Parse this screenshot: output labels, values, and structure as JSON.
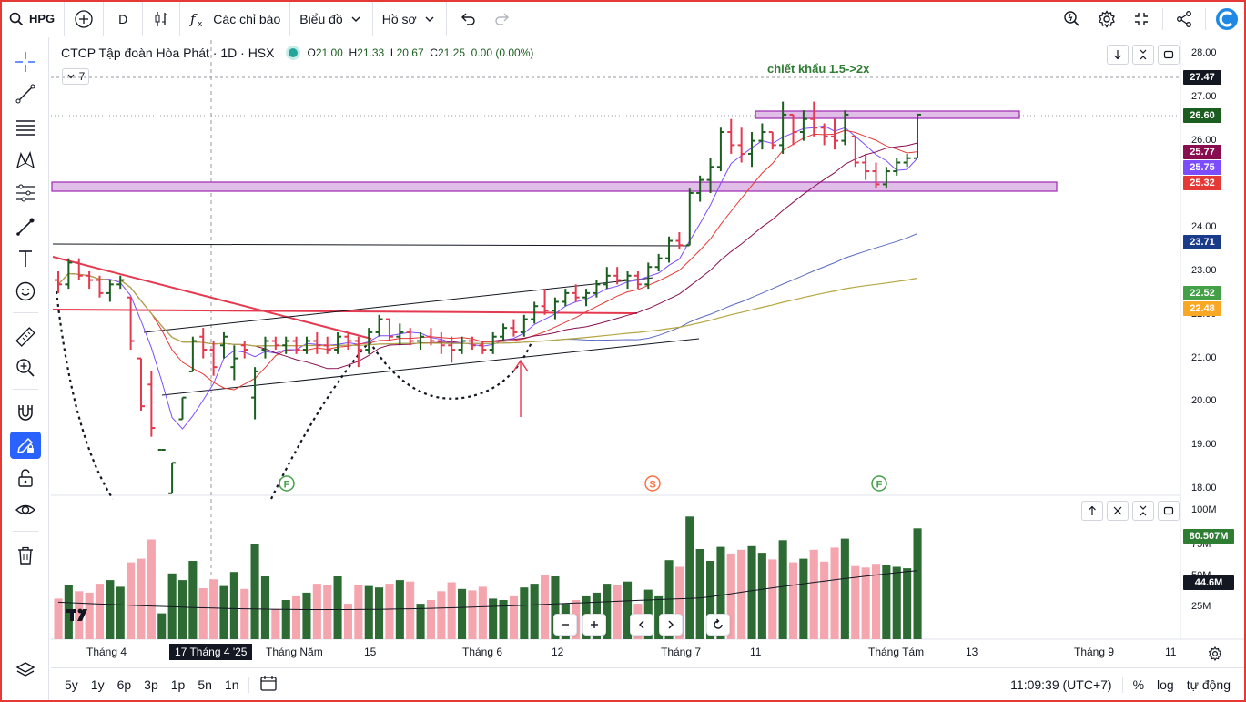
{
  "toolbar": {
    "symbol": "HPG",
    "interval": "D",
    "indicators_label": "Các chỉ báo",
    "chart_type_label": "Biểu đồ",
    "profile_label": "Hồ sơ"
  },
  "legend": {
    "title": "CTCP Tập đoàn Hòa Phát · 1D · HSX",
    "open_label": "O",
    "open": "21.00",
    "high_label": "H",
    "high": "21.33",
    "low_label": "L",
    "low": "20.67",
    "close_label": "C",
    "close": "21.25",
    "change": "0.00 (0.00%)",
    "collapsed_count": "7"
  },
  "annotation": "chiết khẩu 1.5->2x",
  "price_axis": [
    "28.00",
    "27.00",
    "26.00",
    "24.00",
    "23.00",
    "22.00",
    "21.00",
    "20.00",
    "19.00",
    "18.00"
  ],
  "price_tags": [
    {
      "value": "27.47",
      "color": "#131722"
    },
    {
      "value": "26.60",
      "color": "#1b5e20"
    },
    {
      "value": "25.77",
      "color": "#880e4f"
    },
    {
      "value": "25.75",
      "color": "#7c4dff"
    },
    {
      "value": "25.32",
      "color": "#e53935"
    },
    {
      "value": "23.71",
      "color": "#1a3a8a"
    },
    {
      "value": "22.52",
      "color": "#43a047"
    },
    {
      "value": "22.48",
      "color": "#f9a825"
    }
  ],
  "volume_axis": [
    "100M",
    "75M",
    "50M",
    "25M"
  ],
  "volume_tags": [
    {
      "value": "80.507M",
      "color": "#2e7d32"
    },
    {
      "value": "44.6M",
      "color": "#131722"
    }
  ],
  "events": [
    "F",
    "S",
    "F"
  ],
  "time_axis": [
    "Tháng 4",
    "17 Tháng 4 '25",
    "Tháng Năm",
    "15",
    "Tháng 6",
    "12",
    "Tháng 7",
    "11",
    "Tháng Tám",
    "13",
    "Tháng 9",
    "11"
  ],
  "ranges": [
    "5y",
    "1y",
    "6p",
    "3p",
    "1p",
    "5n",
    "1n"
  ],
  "bottom": {
    "clock": "11:09:39 (UTC+7)",
    "percent": "%",
    "log": "log",
    "auto": "tự động"
  },
  "colors": {
    "up": "#1b5e20",
    "down": "#e53950",
    "vol_up": "#2e6b34",
    "vol_down": "#f4a5ad",
    "zone": "#e1bee7",
    "zone_border": "#9c27b0"
  },
  "chart_data": {
    "type": "candlestick",
    "price_range": [
      18.0,
      28.0
    ],
    "ohlc": [
      [
        22.8,
        23.0,
        22.5,
        22.7
      ],
      [
        22.7,
        23.3,
        22.6,
        23.2
      ],
      [
        23.2,
        23.3,
        22.8,
        22.9
      ],
      [
        22.9,
        23.0,
        22.6,
        22.8
      ],
      [
        22.8,
        22.9,
        22.4,
        22.5
      ],
      [
        22.5,
        22.8,
        22.3,
        22.7
      ],
      [
        22.7,
        22.9,
        22.6,
        22.8
      ],
      [
        22.4,
        22.4,
        21.2,
        21.4
      ],
      [
        21.0,
        21.0,
        19.8,
        19.9
      ],
      [
        20.4,
        20.7,
        19.2,
        19.4
      ],
      [
        18.9,
        18.9,
        18.9,
        18.9
      ],
      [
        17.9,
        18.6,
        17.9,
        18.6
      ],
      [
        19.6,
        20.1,
        19.6,
        20.1
      ],
      [
        20.7,
        21.5,
        20.7,
        21.4
      ],
      [
        21.5,
        21.7,
        21.0,
        21.2
      ],
      [
        21.2,
        21.4,
        20.6,
        20.8
      ],
      [
        21.3,
        21.6,
        21.0,
        21.5
      ],
      [
        20.8,
        21.3,
        20.5,
        21.0
      ],
      [
        21.3,
        21.4,
        21.0,
        21.2
      ],
      [
        20.1,
        20.8,
        19.6,
        20.7
      ],
      [
        21.2,
        21.5,
        21.0,
        21.4
      ],
      [
        21.4,
        21.5,
        21.2,
        21.3
      ],
      [
        21.3,
        21.5,
        21.1,
        21.4
      ],
      [
        21.4,
        21.5,
        21.1,
        21.2
      ],
      [
        21.2,
        21.5,
        21.1,
        21.4
      ],
      [
        21.4,
        21.6,
        21.1,
        21.3
      ],
      [
        21.3,
        21.5,
        21.1,
        21.2
      ],
      [
        21.2,
        21.6,
        21.1,
        21.5
      ],
      [
        21.5,
        21.6,
        21.2,
        21.4
      ],
      [
        21.4,
        21.5,
        20.8,
        21.2
      ],
      [
        21.2,
        21.7,
        21.1,
        21.6
      ],
      [
        21.6,
        22.0,
        21.5,
        21.9
      ],
      [
        21.9,
        21.9,
        21.4,
        21.5
      ],
      [
        21.5,
        21.8,
        21.3,
        21.6
      ],
      [
        21.6,
        21.7,
        21.3,
        21.4
      ],
      [
        21.4,
        21.6,
        21.2,
        21.5
      ],
      [
        21.5,
        21.7,
        21.3,
        21.4
      ],
      [
        21.4,
        21.6,
        21.1,
        21.3
      ],
      [
        21.3,
        21.5,
        20.9,
        21.2
      ],
      [
        21.2,
        21.5,
        21.1,
        21.4
      ],
      [
        21.4,
        21.5,
        21.2,
        21.3
      ],
      [
        21.3,
        21.4,
        21.1,
        21.2
      ],
      [
        21.2,
        21.6,
        21.1,
        21.5
      ],
      [
        21.5,
        21.8,
        21.4,
        21.7
      ],
      [
        21.7,
        21.9,
        21.5,
        21.6
      ],
      [
        21.6,
        22.0,
        21.5,
        21.9
      ],
      [
        21.9,
        22.3,
        21.8,
        22.2
      ],
      [
        22.2,
        22.6,
        22.0,
        22.1
      ],
      [
        22.1,
        22.4,
        21.9,
        22.3
      ],
      [
        22.3,
        22.6,
        22.2,
        22.5
      ],
      [
        22.5,
        22.7,
        22.3,
        22.4
      ],
      [
        22.4,
        22.6,
        22.2,
        22.5
      ],
      [
        22.5,
        22.8,
        22.4,
        22.7
      ],
      [
        22.7,
        23.1,
        22.6,
        22.9
      ],
      [
        22.9,
        23.1,
        22.7,
        22.8
      ],
      [
        22.8,
        23.0,
        22.6,
        22.9
      ],
      [
        22.9,
        23.0,
        22.6,
        22.7
      ],
      [
        22.7,
        23.2,
        22.6,
        23.1
      ],
      [
        23.1,
        23.4,
        23.0,
        23.3
      ],
      [
        23.3,
        23.8,
        23.2,
        23.7
      ],
      [
        23.7,
        23.9,
        23.5,
        23.6
      ],
      [
        23.6,
        24.9,
        23.6,
        24.8
      ],
      [
        24.8,
        25.2,
        24.6,
        25.1
      ],
      [
        25.1,
        25.6,
        24.8,
        25.4
      ],
      [
        25.4,
        26.3,
        25.3,
        26.2
      ],
      [
        26.2,
        26.5,
        25.7,
        25.9
      ],
      [
        25.9,
        26.3,
        25.5,
        25.7
      ],
      [
        25.7,
        26.2,
        25.4,
        26.0
      ],
      [
        26.0,
        26.4,
        25.8,
        26.2
      ],
      [
        26.2,
        26.2,
        25.8,
        25.9
      ],
      [
        25.9,
        26.9,
        25.7,
        26.6
      ],
      [
        26.6,
        26.6,
        25.9,
        26.2
      ],
      [
        26.2,
        26.7,
        26.0,
        26.5
      ],
      [
        26.5,
        26.9,
        26.1,
        26.3
      ],
      [
        26.3,
        26.4,
        25.9,
        26.1
      ],
      [
        26.1,
        26.5,
        25.8,
        26.0
      ],
      [
        26.0,
        26.7,
        25.9,
        26.6
      ],
      [
        26.1,
        26.1,
        25.4,
        25.5
      ],
      [
        25.5,
        25.7,
        25.1,
        25.3
      ],
      [
        25.3,
        25.5,
        24.9,
        25.0
      ],
      [
        25.0,
        25.4,
        24.9,
        25.3
      ],
      [
        25.3,
        25.6,
        25.2,
        25.5
      ],
      [
        25.5,
        25.7,
        25.4,
        25.6
      ],
      [
        25.6,
        26.6,
        25.6,
        26.6
      ]
    ],
    "volume_range": [
      0,
      110
    ]
  }
}
